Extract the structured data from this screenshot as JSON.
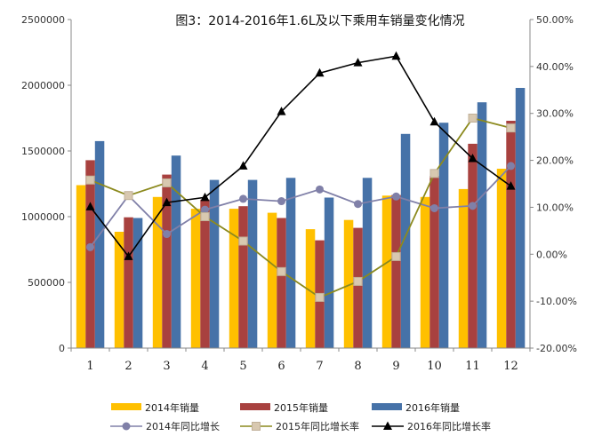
{
  "chart_data": {
    "type": "bar",
    "title": "图3：2014-2016年1.6L及以下乘用车销量变化情况",
    "categories": [
      "1",
      "2",
      "3",
      "4",
      "5",
      "6",
      "7",
      "8",
      "9",
      "10",
      "11",
      "12"
    ],
    "y_left": {
      "ylim": [
        0,
        2500000
      ],
      "ticks": [
        0,
        500000,
        1000000,
        1500000,
        2000000,
        2500000
      ],
      "tick_labels": [
        "0",
        "500000",
        "1000000",
        "1500000",
        "2000000",
        "2500000"
      ]
    },
    "y_right": {
      "ylim": [
        -20,
        50
      ],
      "ticks": [
        -20,
        -10,
        0,
        10,
        20,
        30,
        40,
        50
      ],
      "tick_labels": [
        "-20.00%",
        "-10.00%",
        "0.00%",
        "10.00%",
        "20.00%",
        "30.00%",
        "40.00%",
        "50.00%"
      ]
    },
    "bar_series": [
      {
        "name": "2014年销量",
        "color": "#FFC000",
        "values": [
          1240000,
          885000,
          1150000,
          1060000,
          1060000,
          1030000,
          905000,
          975000,
          1160000,
          1150000,
          1210000,
          1365000
        ]
      },
      {
        "name": "2015年销量",
        "color": "#A8413F",
        "values": [
          1430000,
          995000,
          1320000,
          1130000,
          1080000,
          990000,
          820000,
          915000,
          1165000,
          1310000,
          1555000,
          1730000
        ]
      },
      {
        "name": "2016年销量",
        "color": "#4672A8",
        "values": [
          1575000,
          990000,
          1465000,
          1280000,
          1280000,
          1295000,
          1145000,
          1295000,
          1630000,
          1715000,
          1870000,
          1980000
        ]
      }
    ],
    "line_series": [
      {
        "name": "2014年同比增长",
        "color": "#8080A8",
        "marker": "circle",
        "values": [
          1.5,
          12.5,
          4.3,
          9.5,
          11.8,
          11.3,
          13.8,
          10.7,
          12.3,
          9.8,
          10.3,
          18.8
        ]
      },
      {
        "name": "2015年同比增长率",
        "color": "#8C8A1E",
        "marker": "square",
        "values": [
          15.8,
          12.5,
          15.2,
          8.0,
          2.8,
          -3.7,
          -9.2,
          -5.8,
          -0.5,
          17.2,
          29.0,
          26.9
        ]
      },
      {
        "name": "2016年同比增长率",
        "color": "#000000",
        "marker": "triangle",
        "values": [
          10.1,
          -0.5,
          11.0,
          12.1,
          18.8,
          30.4,
          38.6,
          40.8,
          42.2,
          28.2,
          20.4,
          14.5
        ]
      }
    ],
    "legend_position": "bottom",
    "grid": false
  }
}
